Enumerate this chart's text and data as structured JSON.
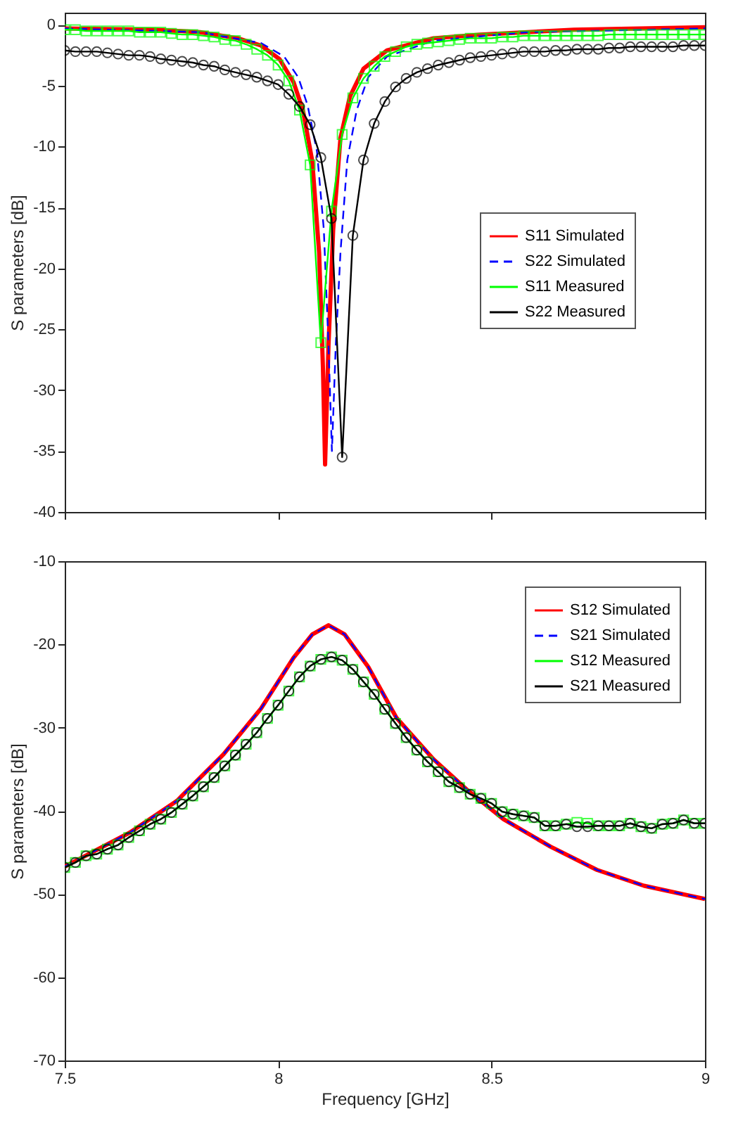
{
  "chart_data": [
    {
      "type": "line",
      "ylabel": "S parameters [dB]",
      "xlim": [
        7.5,
        9
      ],
      "xticks": [
        7.5,
        8,
        8.5,
        9
      ],
      "ylim": [
        -40,
        1
      ],
      "yticks": [
        -40,
        -35,
        -30,
        -25,
        -20,
        -15,
        -10,
        -5,
        0
      ],
      "tick_labels": "y",
      "grid": false,
      "legend": "right",
      "x": [
        7.5,
        7.525,
        7.55,
        7.575,
        7.6,
        7.625,
        7.65,
        7.675,
        7.7,
        7.725,
        7.75,
        7.775,
        7.8,
        7.825,
        7.85,
        7.875,
        7.9,
        7.925,
        7.95,
        7.975,
        8,
        8.025,
        8.05,
        8.075,
        8.1,
        8.125,
        8.15,
        8.175,
        8.2,
        8.225,
        8.25,
        8.275,
        8.3,
        8.325,
        8.35,
        8.375,
        8.4,
        8.425,
        8.45,
        8.475,
        8.5,
        8.525,
        8.55,
        8.575,
        8.6,
        8.625,
        8.65,
        8.675,
        8.7,
        8.725,
        8.75,
        8.775,
        8.8,
        8.825,
        8.85,
        8.875,
        8.9,
        8.925,
        8.95,
        8.975,
        9
      ],
      "series": [
        {
          "name": "S11 Simulated",
          "color": "#ff0000",
          "line_style": "solid",
          "marker": "none",
          "x": [
            7.5,
            7.708,
            7.817,
            7.905,
            7.96,
            8.003,
            8.036,
            8.058,
            8.08,
            8.096,
            8.105,
            8.11,
            8.118,
            8.129,
            8.146,
            8.168,
            8.2,
            8.255,
            8.364,
            8.474,
            8.693,
            9
          ],
          "values": [
            -0.3,
            -0.4,
            -0.6,
            -1.1,
            -1.7,
            -2.8,
            -4.7,
            -7.0,
            -11.2,
            -18.7,
            -28.2,
            -36.1,
            -26.3,
            -16.8,
            -9.3,
            -5.9,
            -3.6,
            -2.1,
            -1.1,
            -0.8,
            -0.4,
            -0.2
          ]
        },
        {
          "name": "S22 Simulated",
          "color": "#0000ff",
          "line_style": "dashed",
          "marker": "none",
          "x": [
            7.5,
            7.817,
            7.96,
            8.014,
            8.047,
            8.069,
            8.091,
            8.107,
            8.118,
            8.126,
            8.135,
            8.146,
            8.162,
            8.184,
            8.211,
            8.255,
            8.364,
            8.583,
            9
          ],
          "values": [
            -0.3,
            -0.6,
            -1.5,
            -2.6,
            -4.3,
            -6.6,
            -10.4,
            -16.8,
            -26.3,
            -35.0,
            -26.3,
            -18.7,
            -11.1,
            -7.0,
            -4.3,
            -2.6,
            -1.3,
            -0.6,
            -0.3
          ]
        },
        {
          "name": "S11 Measured",
          "color": "#00ff00",
          "line_style": "solid",
          "marker": "square",
          "values": [
            -0.4,
            -0.4,
            -0.5,
            -0.5,
            -0.5,
            -0.5,
            -0.5,
            -0.6,
            -0.6,
            -0.6,
            -0.7,
            -0.8,
            -0.8,
            -0.9,
            -1.0,
            -1.2,
            -1.3,
            -1.6,
            -2.0,
            -2.5,
            -3.3,
            -4.6,
            -7.0,
            -11.5,
            -26.1,
            -15.3,
            -9.0,
            -6.0,
            -4.4,
            -3.4,
            -2.6,
            -2.2,
            -1.8,
            -1.6,
            -1.5,
            -1.4,
            -1.3,
            -1.2,
            -1.1,
            -1.1,
            -1.1,
            -1.0,
            -1.0,
            -0.9,
            -0.9,
            -0.9,
            -0.9,
            -0.9,
            -0.9,
            -0.9,
            -0.9,
            -0.8,
            -0.8,
            -0.8,
            -0.8,
            -0.8,
            -0.8,
            -0.8,
            -0.8,
            -0.8,
            -0.8
          ]
        },
        {
          "name": "S22 Measured",
          "color": "#000000",
          "line_style": "solid",
          "marker": "circle",
          "values": [
            -2.1,
            -2.2,
            -2.2,
            -2.2,
            -2.3,
            -2.4,
            -2.5,
            -2.5,
            -2.6,
            -2.8,
            -2.9,
            -3.0,
            -3.1,
            -3.3,
            -3.4,
            -3.7,
            -3.9,
            -4.1,
            -4.3,
            -4.6,
            -4.9,
            -5.7,
            -6.7,
            -8.2,
            -10.9,
            -15.9,
            -35.5,
            -17.3,
            -11.1,
            -8.1,
            -6.3,
            -5.1,
            -4.4,
            -3.9,
            -3.6,
            -3.3,
            -3.1,
            -2.9,
            -2.7,
            -2.6,
            -2.5,
            -2.4,
            -2.3,
            -2.2,
            -2.2,
            -2.2,
            -2.1,
            -2.1,
            -2.0,
            -2.0,
            -2.0,
            -1.9,
            -1.9,
            -1.8,
            -1.8,
            -1.8,
            -1.8,
            -1.8,
            -1.7,
            -1.7,
            -1.7
          ]
        }
      ]
    },
    {
      "type": "line",
      "xlabel": "Frequency [GHz]",
      "ylabel": "S parameters [dB]",
      "xlim": [
        7.5,
        9
      ],
      "xticks": [
        7.5,
        8,
        8.5,
        9
      ],
      "ylim": [
        -70,
        -10
      ],
      "yticks": [
        -70,
        -60,
        -50,
        -40,
        -30,
        -20,
        -10
      ],
      "grid": false,
      "legend": "top right",
      "x": [
        7.5,
        7.525,
        7.55,
        7.575,
        7.6,
        7.625,
        7.65,
        7.675,
        7.7,
        7.725,
        7.75,
        7.775,
        7.8,
        7.825,
        7.85,
        7.875,
        7.9,
        7.925,
        7.95,
        7.975,
        8,
        8.025,
        8.05,
        8.075,
        8.1,
        8.125,
        8.15,
        8.175,
        8.2,
        8.225,
        8.25,
        8.275,
        8.3,
        8.325,
        8.35,
        8.375,
        8.4,
        8.425,
        8.45,
        8.475,
        8.5,
        8.525,
        8.55,
        8.575,
        8.6,
        8.625,
        8.65,
        8.675,
        8.7,
        8.725,
        8.75,
        8.775,
        8.8,
        8.825,
        8.85,
        8.875,
        8.9,
        8.925,
        8.95,
        8.975,
        9
      ],
      "series": [
        {
          "name": "S12 Simulated",
          "color": "#ff0000",
          "line_style": "solid",
          "marker": "none",
          "x": [
            7.5,
            7.653,
            7.763,
            7.872,
            7.96,
            8.036,
            8.08,
            8.118,
            8.156,
            8.211,
            8.277,
            8.364,
            8.441,
            8.528,
            8.638,
            8.747,
            8.857,
            9
          ],
          "values": [
            -46.7,
            -42.6,
            -38.8,
            -33.2,
            -27.7,
            -21.6,
            -18.8,
            -17.7,
            -18.8,
            -22.7,
            -28.8,
            -33.8,
            -37.4,
            -41.0,
            -44.3,
            -47.1,
            -49.0,
            -50.6
          ]
        },
        {
          "name": "S21 Simulated",
          "color": "#0000ff",
          "line_style": "dashed",
          "marker": "none",
          "x": [
            7.5,
            7.653,
            7.763,
            7.872,
            7.96,
            8.036,
            8.08,
            8.118,
            8.156,
            8.211,
            8.277,
            8.364,
            8.441,
            8.528,
            8.638,
            8.747,
            8.857,
            9
          ],
          "values": [
            -46.7,
            -42.6,
            -38.8,
            -33.2,
            -27.7,
            -21.6,
            -18.8,
            -17.7,
            -18.8,
            -22.7,
            -28.8,
            -33.8,
            -37.4,
            -41.0,
            -44.3,
            -47.1,
            -49.0,
            -50.6
          ]
        },
        {
          "name": "S12 Measured",
          "color": "#00ff00",
          "line_style": "solid",
          "marker": "square",
          "values": [
            -46.8,
            -46.2,
            -45.4,
            -45.2,
            -44.6,
            -44.1,
            -43.2,
            -42.4,
            -41.6,
            -41.0,
            -40.2,
            -39.2,
            -38.2,
            -37.1,
            -36.0,
            -34.6,
            -33.3,
            -32.0,
            -30.6,
            -28.9,
            -27.3,
            -25.6,
            -23.9,
            -22.6,
            -21.8,
            -21.5,
            -21.9,
            -23.0,
            -24.5,
            -26.0,
            -27.8,
            -29.5,
            -31.2,
            -32.7,
            -34.1,
            -35.3,
            -36.5,
            -37.2,
            -38.0,
            -38.5,
            -39.1,
            -40.1,
            -40.4,
            -40.6,
            -40.8,
            -41.8,
            -41.8,
            -41.6,
            -41.4,
            -41.5,
            -41.8,
            -41.8,
            -41.8,
            -41.5,
            -41.9,
            -42.1,
            -41.6,
            -41.5,
            -41.1,
            -41.5,
            -41.5
          ]
        },
        {
          "name": "S21 Measured",
          "color": "#000000",
          "line_style": "solid",
          "marker": "circle",
          "values": [
            -46.8,
            -46.2,
            -45.4,
            -45.2,
            -44.6,
            -44.1,
            -43.2,
            -42.4,
            -41.6,
            -41.0,
            -40.2,
            -39.2,
            -38.2,
            -37.1,
            -36.0,
            -34.6,
            -33.3,
            -32.0,
            -30.6,
            -28.9,
            -27.3,
            -25.6,
            -23.9,
            -22.6,
            -21.8,
            -21.5,
            -21.9,
            -23.0,
            -24.5,
            -26.0,
            -27.8,
            -29.5,
            -31.2,
            -32.7,
            -34.1,
            -35.3,
            -36.5,
            -37.2,
            -38.0,
            -38.5,
            -39.1,
            -40.1,
            -40.4,
            -40.6,
            -40.8,
            -41.8,
            -41.8,
            -41.6,
            -41.9,
            -41.9,
            -41.8,
            -41.8,
            -41.8,
            -41.5,
            -41.9,
            -42.1,
            -41.6,
            -41.5,
            -41.1,
            -41.5,
            -41.5
          ]
        }
      ]
    }
  ]
}
